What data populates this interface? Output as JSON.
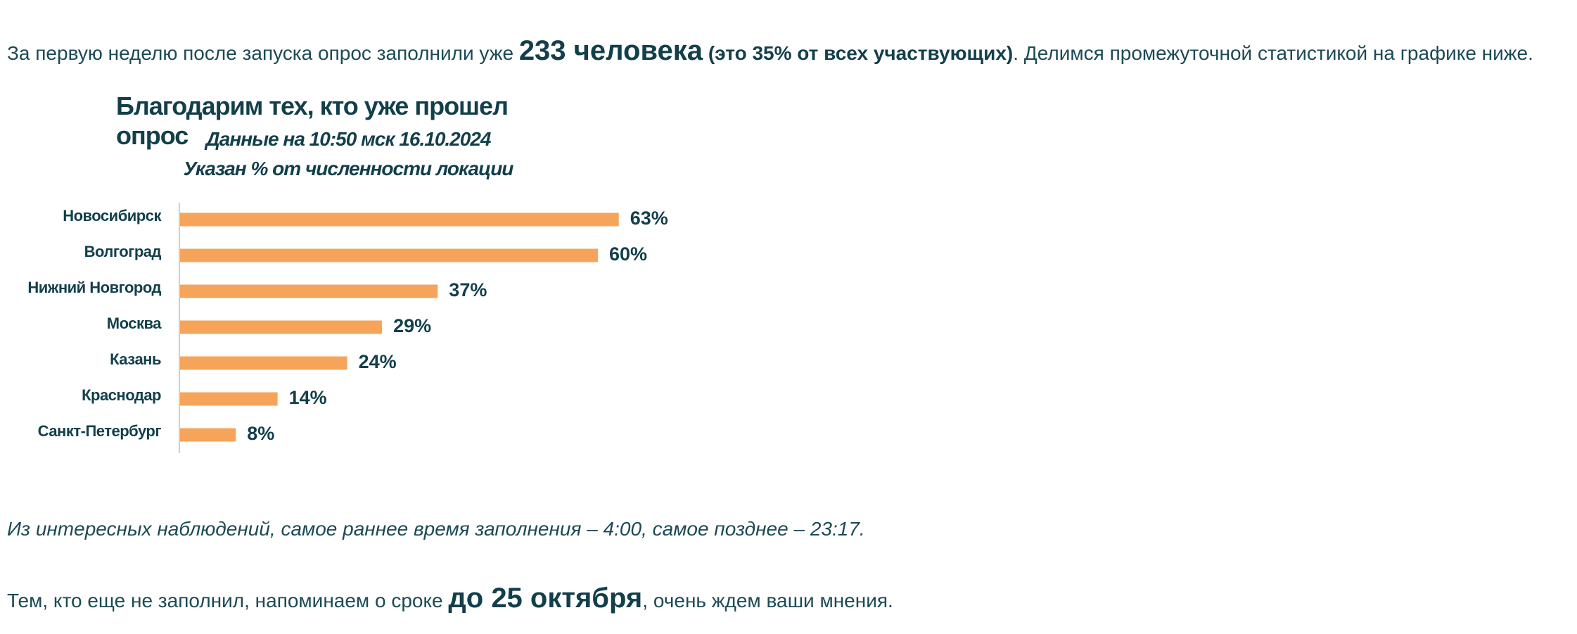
{
  "intro": {
    "pre": "За первую неделю после запуска опрос заполнили уже ",
    "count": "233 человека",
    "share": "(это 35% от всех участвующих)",
    "post": ". Делимся промежуточной статистикой на графике ниже."
  },
  "observation": "Из интересных наблюдений, самое раннее время заполнения – 4:00, самое позднее – 23:17.",
  "reminder": {
    "pre": "Тем, кто еще не заполнил, напоминаем о сроке ",
    "deadline": "до 25 октября",
    "post": ", очень ждем ваши мнения."
  },
  "chart_data": {
    "type": "bar",
    "orientation": "horizontal",
    "title": "Благодарим тех, кто уже прошел опрос",
    "subtitle": "Данные на 10:50 мск 16.10.2024",
    "subtitle2": "Указан % от численности локации",
    "categories": [
      "Новосибирск",
      "Волгоград",
      "Нижний Новгород",
      "Москва",
      "Казань",
      "Краснодар",
      "Санкт-Петербург"
    ],
    "values": [
      63,
      60,
      37,
      29,
      24,
      14,
      8
    ],
    "value_suffix": "%",
    "bar_color": "#f5a45a",
    "xlim": [
      0,
      100
    ],
    "grid": false,
    "legend": "none"
  }
}
